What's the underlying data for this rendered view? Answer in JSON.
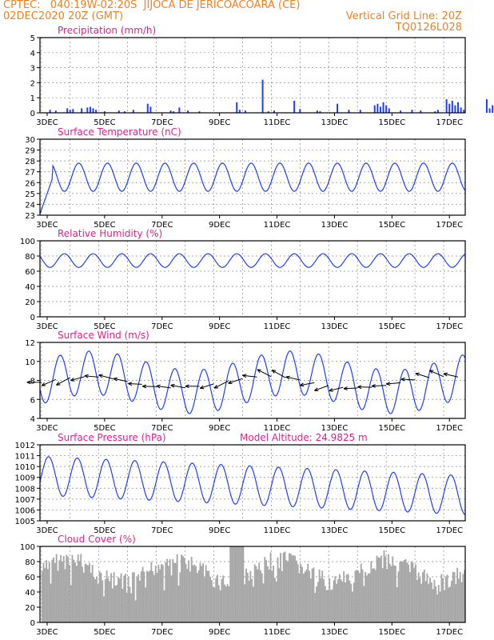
{
  "header": {
    "left1": "CPTEC:   040:19W-02:20S  JIJOCA DE JERICOACOARA (CE)",
    "left2": "02DEC2020 20Z (GMT)",
    "right1": "Vertical Grid Line: 20Z",
    "right2": "TQ0126L028"
  },
  "colors": {
    "header": "#f08020",
    "title": "#e0208f",
    "line": "#1f3fff",
    "bar": "#1f3fff",
    "cloud": "#a8a8a8",
    "grid": "#888888",
    "arrow": "#000000"
  },
  "x_ticks": [
    "3DEC",
    "5DEC",
    "7DEC",
    "9DEC",
    "11DEC",
    "13DEC",
    "15DEC",
    "17DEC"
  ],
  "chart_data": [
    {
      "type": "bar",
      "title": "Precipitation (mm/h)",
      "ylim": [
        0,
        5
      ],
      "yticks": [
        0,
        1,
        2,
        3,
        4,
        5
      ],
      "x_unit": "days since 02DEC 20Z",
      "x": [
        0.3,
        0.5,
        0.9,
        1.0,
        1.1,
        1.4,
        1.6,
        1.7,
        1.8,
        1.9,
        2.2,
        2.7,
        2.9,
        3.2,
        3.7,
        3.8,
        4.5,
        4.6,
        4.8,
        5.1,
        5.5,
        6.8,
        6.9,
        7.1,
        7.7,
        7.9,
        8.1,
        8.8,
        9.0,
        9.6,
        9.7,
        10.3,
        10.7,
        11.1,
        11.6,
        11.7,
        11.8,
        11.9,
        12.0,
        12.1,
        12.5,
        12.9,
        13.2,
        13.7,
        13.8,
        14.1,
        14.2,
        14.3,
        14.4,
        14.5,
        14.6,
        14.7,
        15.5,
        15.6,
        15.7,
        15.9,
        16.1,
        16.2,
        16.3,
        16.4,
        16.6,
        16.8,
        17.2
      ],
      "values": [
        0.2,
        0.15,
        0.3,
        0.2,
        0.25,
        0.3,
        0.35,
        0.4,
        0.3,
        0.2,
        0.1,
        0.15,
        0.1,
        0.2,
        0.6,
        0.4,
        0.15,
        0.1,
        0.35,
        0.15,
        0.1,
        0.7,
        0.2,
        0.15,
        2.2,
        0.1,
        0.15,
        0.8,
        0.25,
        0.15,
        0.1,
        0.6,
        0.2,
        0.2,
        0.5,
        0.6,
        0.4,
        0.7,
        0.5,
        0.3,
        0.15,
        0.2,
        0.15,
        0.1,
        0.2,
        0.9,
        0.6,
        0.8,
        0.5,
        0.7,
        0.35,
        0.2,
        0.9,
        0.3,
        0.5,
        1.0,
        0.4,
        0.8,
        0.9,
        0.5,
        0.9,
        0.6,
        0.3
      ]
    },
    {
      "type": "line",
      "title": "Surface Temperature (nC)",
      "ylim": [
        23,
        30
      ],
      "yticks": [
        23,
        24,
        25,
        26,
        27,
        28,
        29,
        30
      ],
      "series": [
        {
          "amean": 26.5,
          "amp": 1.3,
          "phase": 0.05,
          "start": 23.5
        }
      ]
    },
    {
      "type": "line",
      "title": "Relative Humidity (%)",
      "ylim": [
        0,
        100
      ],
      "yticks": [
        0,
        20,
        40,
        60,
        80,
        100
      ],
      "series": [
        {
          "amean": 74,
          "amp": 9,
          "phase": 0.55,
          "start": 90
        }
      ]
    },
    {
      "type": "line",
      "title": "Surface Wind (m/s)",
      "ylim": [
        4,
        12
      ],
      "yticks": [
        4,
        6,
        8,
        10,
        12
      ],
      "vectors": "wind direction arrows along the series",
      "series": [
        {
          "amean": 7.8,
          "amp": 2.3,
          "phase": 0.4,
          "start": 8.5
        }
      ]
    },
    {
      "type": "line",
      "title": "Surface Pressure (hPa)",
      "annotation": "Model Altitude: 24.9825 m",
      "ylim": [
        1005,
        1012
      ],
      "yticks": [
        1005,
        1006,
        1007,
        1008,
        1009,
        1010,
        1011,
        1012
      ],
      "series": [
        {
          "amean": 1008.3,
          "amp": 1.8,
          "phase": 0.0,
          "trend": -0.12,
          "start": 1009
        }
      ]
    },
    {
      "type": "area",
      "title": "Cloud Cover (%)",
      "ylim": [
        0,
        100
      ],
      "yticks": [
        0,
        20,
        40,
        60,
        80,
        100
      ],
      "fill": "gray"
    }
  ]
}
